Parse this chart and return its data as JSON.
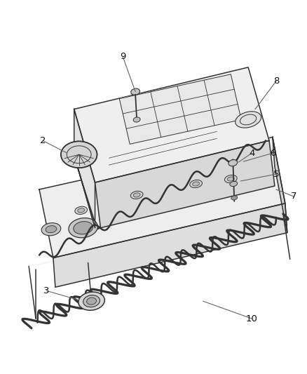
{
  "bg_color": "#ffffff",
  "line_color": "#333333",
  "fill_light": "#f2f2f2",
  "fill_mid": "#e0e0e0",
  "fill_dark": "#c8c8c8",
  "figsize": [
    4.38,
    5.33
  ],
  "dpi": 100,
  "label_fontsize": 9.5
}
